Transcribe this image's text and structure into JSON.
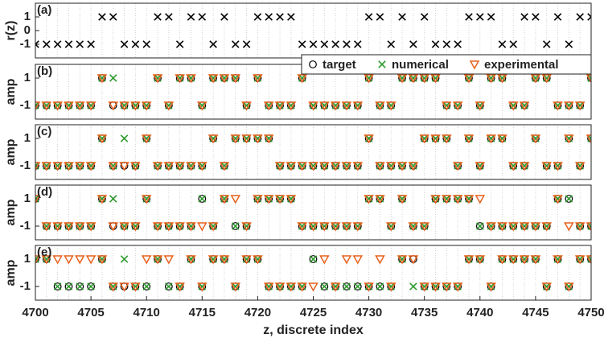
{
  "chart_data": [
    {
      "type": "scatter",
      "panel_label": "(a)",
      "ylabel": "r(z)",
      "xlim": [
        4700,
        4750
      ],
      "ylim": [
        -2,
        2
      ],
      "yticks": [
        -1,
        0,
        1
      ],
      "grid": true,
      "x": [
        4700,
        4701,
        4702,
        4703,
        4704,
        4705,
        4706,
        4707,
        4708,
        4709,
        4710,
        4711,
        4712,
        4713,
        4714,
        4715,
        4716,
        4717,
        4718,
        4719,
        4720,
        4721,
        4722,
        4723,
        4724,
        4725,
        4726,
        4727,
        4728,
        4729,
        4730,
        4731,
        4732,
        4733,
        4734,
        4735,
        4736,
        4737,
        4738,
        4739,
        4740,
        4741,
        4742,
        4743,
        4744,
        4745,
        4746,
        4747,
        4748,
        4749,
        4750
      ],
      "series": [
        {
          "marker": "x",
          "color": "#000000",
          "values": [
            -1,
            -1,
            -1,
            -1,
            -1,
            -1,
            1,
            1,
            -1,
            -1,
            -1,
            1,
            1,
            -1,
            1,
            1,
            -1,
            1,
            -1,
            -1,
            1,
            1,
            1,
            1,
            -1,
            -1,
            -1,
            -1,
            -1,
            -1,
            1,
            1,
            -1,
            1,
            -1,
            1,
            -1,
            -1,
            -1,
            1,
            1,
            1,
            -1,
            -1,
            1,
            1,
            -1,
            1,
            -1,
            1,
            1
          ]
        }
      ]
    },
    {
      "type": "scatter",
      "panel_label": "(b)",
      "ylabel": "amp",
      "xlim": [
        4700,
        4750
      ],
      "ylim": [
        -2,
        2
      ],
      "yticks": [
        -1,
        1
      ],
      "grid": true,
      "legend": "upper right",
      "x": [
        4700,
        4701,
        4702,
        4703,
        4704,
        4705,
        4706,
        4707,
        4708,
        4709,
        4710,
        4711,
        4712,
        4713,
        4714,
        4715,
        4716,
        4717,
        4718,
        4719,
        4720,
        4721,
        4722,
        4723,
        4724,
        4725,
        4726,
        4727,
        4728,
        4729,
        4730,
        4731,
        4732,
        4733,
        4734,
        4735,
        4736,
        4737,
        4738,
        4739,
        4740,
        4741,
        4742,
        4743,
        4744,
        4745,
        4746,
        4747,
        4748,
        4749,
        4750
      ],
      "series": [
        {
          "name": "target",
          "marker": "o",
          "color": "#000000",
          "values": [
            -1,
            -1,
            -1,
            -1,
            -1,
            -1,
            1,
            -1,
            -1,
            -1,
            -1,
            1,
            -1,
            1,
            1,
            -1,
            1,
            1,
            1,
            -1,
            1,
            -1,
            -1,
            -1,
            1,
            -1,
            -1,
            -1,
            -1,
            -1,
            1,
            -1,
            -1,
            1,
            1,
            1,
            1,
            -1,
            -1,
            1,
            -1,
            1,
            1,
            -1,
            -1,
            1,
            1,
            -1,
            -1,
            -1,
            1
          ]
        },
        {
          "name": "numerical",
          "marker": "x",
          "color": "#2e9a2e",
          "values": [
            -1,
            -1,
            -1,
            -1,
            -1,
            -1,
            1,
            1,
            -1,
            -1,
            -1,
            1,
            -1,
            1,
            1,
            -1,
            1,
            1,
            1,
            -1,
            1,
            -1,
            -1,
            -1,
            1,
            -1,
            -1,
            -1,
            -1,
            -1,
            1,
            -1,
            -1,
            1,
            1,
            1,
            1,
            -1,
            -1,
            1,
            -1,
            1,
            1,
            -1,
            -1,
            1,
            1,
            -1,
            -1,
            -1,
            1
          ]
        },
        {
          "name": "experimental",
          "marker": "v",
          "color": "#e8601c",
          "values": [
            -1,
            -1,
            -1,
            -1,
            -1,
            -1,
            1,
            -1,
            -1,
            -1,
            -1,
            1,
            -1,
            1,
            1,
            -1,
            1,
            1,
            1,
            -1,
            1,
            -1,
            -1,
            -1,
            1,
            -1,
            -1,
            -1,
            -1,
            -1,
            1,
            -1,
            -1,
            1,
            1,
            1,
            1,
            -1,
            -1,
            1,
            -1,
            1,
            1,
            -1,
            -1,
            1,
            1,
            -1,
            -1,
            -1,
            1
          ]
        }
      ]
    },
    {
      "type": "scatter",
      "panel_label": "(c)",
      "ylabel": "amp",
      "xlim": [
        4700,
        4750
      ],
      "ylim": [
        -2,
        2
      ],
      "yticks": [
        -1,
        1
      ],
      "grid": true,
      "x": [
        4700,
        4701,
        4702,
        4703,
        4704,
        4705,
        4706,
        4707,
        4708,
        4709,
        4710,
        4711,
        4712,
        4713,
        4714,
        4715,
        4716,
        4717,
        4718,
        4719,
        4720,
        4721,
        4722,
        4723,
        4724,
        4725,
        4726,
        4727,
        4728,
        4729,
        4730,
        4731,
        4732,
        4733,
        4734,
        4735,
        4736,
        4737,
        4738,
        4739,
        4740,
        4741,
        4742,
        4743,
        4744,
        4745,
        4746,
        4747,
        4748,
        4749,
        4750
      ],
      "series": [
        {
          "marker": "o",
          "color": "#000000",
          "values": [
            -1,
            -1,
            -1,
            -1,
            -1,
            -1,
            1,
            -1,
            -1,
            -1,
            1,
            -1,
            -1,
            -1,
            -1,
            -1,
            1,
            -1,
            1,
            1,
            1,
            1,
            -1,
            -1,
            -1,
            -1,
            -1,
            -1,
            -1,
            -1,
            1,
            -1,
            -1,
            -1,
            -1,
            1,
            1,
            1,
            -1,
            1,
            -1,
            1,
            1,
            -1,
            -1,
            1,
            -1,
            -1,
            1,
            -1,
            1
          ]
        },
        {
          "marker": "x",
          "color": "#2e9a2e",
          "values": [
            -1,
            -1,
            -1,
            -1,
            -1,
            -1,
            1,
            -1,
            1,
            -1,
            1,
            -1,
            -1,
            -1,
            -1,
            -1,
            1,
            -1,
            1,
            1,
            1,
            1,
            -1,
            -1,
            -1,
            -1,
            -1,
            -1,
            -1,
            -1,
            1,
            -1,
            -1,
            -1,
            -1,
            1,
            1,
            1,
            -1,
            1,
            -1,
            1,
            1,
            -1,
            -1,
            1,
            -1,
            -1,
            1,
            -1,
            1
          ]
        },
        {
          "marker": "v",
          "color": "#e8601c",
          "values": [
            -1,
            -1,
            -1,
            -1,
            -1,
            -1,
            1,
            -1,
            -1,
            -1,
            1,
            -1,
            -1,
            -1,
            -1,
            -1,
            1,
            -1,
            1,
            1,
            1,
            1,
            -1,
            -1,
            -1,
            -1,
            -1,
            -1,
            -1,
            -1,
            1,
            -1,
            -1,
            -1,
            -1,
            1,
            1,
            1,
            -1,
            1,
            -1,
            1,
            1,
            -1,
            -1,
            1,
            -1,
            -1,
            1,
            -1,
            1
          ]
        }
      ]
    },
    {
      "type": "scatter",
      "panel_label": "(d)",
      "ylabel": "amp",
      "xlim": [
        4700,
        4750
      ],
      "ylim": [
        -2,
        2
      ],
      "yticks": [
        -1,
        1
      ],
      "grid": true,
      "x": [
        4700,
        4701,
        4702,
        4703,
        4704,
        4705,
        4706,
        4707,
        4708,
        4709,
        4710,
        4711,
        4712,
        4713,
        4714,
        4715,
        4716,
        4717,
        4718,
        4719,
        4720,
        4721,
        4722,
        4723,
        4724,
        4725,
        4726,
        4727,
        4728,
        4729,
        4730,
        4731,
        4732,
        4733,
        4734,
        4735,
        4736,
        4737,
        4738,
        4739,
        4740,
        4741,
        4742,
        4743,
        4744,
        4745,
        4746,
        4747,
        4748,
        4749,
        4750
      ],
      "series": [
        {
          "marker": "o",
          "color": "#000000",
          "values": [
            1,
            -1,
            -1,
            -1,
            -1,
            -1,
            1,
            -1,
            -1,
            -1,
            1,
            -1,
            -1,
            -1,
            -1,
            1,
            -1,
            1,
            -1,
            -1,
            1,
            1,
            1,
            1,
            -1,
            -1,
            -1,
            -1,
            -1,
            -1,
            1,
            1,
            -1,
            1,
            -1,
            -1,
            1,
            1,
            1,
            1,
            -1,
            -1,
            -1,
            -1,
            -1,
            -1,
            -1,
            1,
            1,
            -1,
            -1
          ]
        },
        {
          "marker": "x",
          "color": "#2e9a2e",
          "values": [
            1,
            -1,
            -1,
            -1,
            -1,
            -1,
            1,
            1,
            -1,
            -1,
            1,
            -1,
            -1,
            -1,
            -1,
            1,
            -1,
            1,
            -1,
            -1,
            1,
            1,
            1,
            1,
            -1,
            -1,
            -1,
            -1,
            -1,
            -1,
            1,
            1,
            -1,
            1,
            -1,
            -1,
            1,
            1,
            1,
            1,
            -1,
            -1,
            -1,
            -1,
            -1,
            -1,
            -1,
            1,
            1,
            -1,
            -1
          ]
        },
        {
          "marker": "v",
          "color": "#e8601c",
          "values": [
            1,
            -1,
            -1,
            -1,
            -1,
            -1,
            1,
            -1,
            -1,
            -1,
            1,
            -1,
            -1,
            -1,
            -1,
            -1,
            -1,
            1,
            1,
            -1,
            1,
            1,
            1,
            1,
            -1,
            -1,
            -1,
            -1,
            -1,
            -1,
            1,
            1,
            -1,
            1,
            -1,
            -1,
            1,
            1,
            1,
            1,
            1,
            -1,
            -1,
            -1,
            -1,
            -1,
            -1,
            1,
            -1,
            -1,
            -1
          ]
        }
      ]
    },
    {
      "type": "scatter",
      "panel_label": "(e)",
      "ylabel": "amp",
      "xlabel": "z, discrete index",
      "xlim": [
        4700,
        4750
      ],
      "ylim": [
        -2,
        2
      ],
      "yticks": [
        -1,
        1
      ],
      "grid": true,
      "xticks": [
        4700,
        4705,
        4710,
        4715,
        4720,
        4725,
        4730,
        4735,
        4740,
        4745,
        4750
      ],
      "x": [
        4700,
        4701,
        4702,
        4703,
        4704,
        4705,
        4706,
        4707,
        4708,
        4709,
        4710,
        4711,
        4712,
        4713,
        4714,
        4715,
        4716,
        4717,
        4718,
        4719,
        4720,
        4721,
        4722,
        4723,
        4724,
        4725,
        4726,
        4727,
        4728,
        4729,
        4730,
        4731,
        4732,
        4733,
        4734,
        4735,
        4736,
        4737,
        4738,
        4739,
        4740,
        4741,
        4742,
        4743,
        4744,
        4745,
        4746,
        4747,
        4748,
        4749,
        4750
      ],
      "series": [
        {
          "marker": "o",
          "color": "#000000",
          "values": [
            1,
            1,
            -1,
            -1,
            -1,
            -1,
            1,
            -1,
            -1,
            -1,
            -1,
            1,
            -1,
            -1,
            1,
            -1,
            1,
            1,
            -1,
            1,
            1,
            -1,
            -1,
            -1,
            -1,
            1,
            -1,
            -1,
            -1,
            -1,
            -1,
            -1,
            -1,
            1,
            1,
            -1,
            -1,
            -1,
            -1,
            1,
            1,
            -1,
            1,
            1,
            1,
            1,
            -1,
            1,
            -1,
            1,
            1
          ]
        },
        {
          "marker": "x",
          "color": "#2e9a2e",
          "values": [
            1,
            1,
            -1,
            -1,
            -1,
            -1,
            1,
            -1,
            1,
            -1,
            -1,
            1,
            -1,
            -1,
            1,
            -1,
            1,
            1,
            -1,
            1,
            1,
            -1,
            -1,
            -1,
            -1,
            1,
            -1,
            -1,
            -1,
            -1,
            -1,
            -1,
            -1,
            1,
            -1,
            -1,
            -1,
            -1,
            -1,
            1,
            1,
            -1,
            1,
            1,
            1,
            1,
            -1,
            1,
            -1,
            1,
            1
          ]
        },
        {
          "marker": "v",
          "color": "#e8601c",
          "values": [
            1,
            1,
            1,
            1,
            1,
            1,
            1,
            -1,
            -1,
            -1,
            1,
            1,
            1,
            -1,
            1,
            -1,
            1,
            1,
            -1,
            1,
            1,
            -1,
            -1,
            -1,
            -1,
            -1,
            1,
            -1,
            1,
            1,
            -1,
            1,
            -1,
            1,
            1,
            -1,
            -1,
            -1,
            -1,
            1,
            1,
            -1,
            1,
            1,
            1,
            1,
            -1,
            1,
            -1,
            1,
            1
          ]
        }
      ]
    }
  ]
}
